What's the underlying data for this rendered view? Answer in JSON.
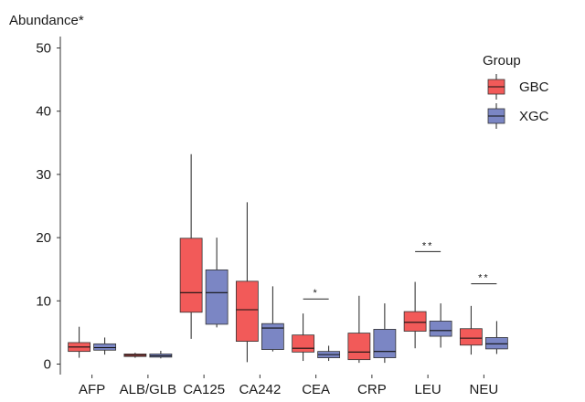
{
  "chart_data": {
    "type": "box",
    "ylabel": "Abundance*",
    "ylim": [
      0,
      52
    ],
    "yticks": [
      0,
      10,
      20,
      30,
      40,
      50
    ],
    "grid": false,
    "legend": {
      "title": "Group",
      "position": "top-right"
    },
    "categories": [
      "AFP",
      "ALB/GLB",
      "CA125",
      "CA242",
      "CEA",
      "CRP",
      "LEU",
      "NEU"
    ],
    "series": [
      {
        "name": "GBC",
        "color": "#f25a59",
        "boxes": [
          {
            "min": 1.0,
            "q1": 2.0,
            "median": 2.7,
            "q3": 3.4,
            "max": 5.9
          },
          {
            "min": 1.0,
            "q1": 1.2,
            "median": 1.4,
            "q3": 1.6,
            "max": 1.8
          },
          {
            "min": 4.0,
            "q1": 8.2,
            "median": 11.3,
            "q3": 19.9,
            "max": 33.2
          },
          {
            "min": 0.3,
            "q1": 3.6,
            "median": 8.6,
            "q3": 13.1,
            "max": 25.6
          },
          {
            "min": 0.5,
            "q1": 1.9,
            "median": 2.5,
            "q3": 4.6,
            "max": 8.0
          },
          {
            "min": 0.2,
            "q1": 0.7,
            "median": 1.9,
            "q3": 4.9,
            "max": 10.8
          },
          {
            "min": 2.5,
            "q1": 5.2,
            "median": 6.6,
            "q3": 8.3,
            "max": 13.0
          },
          {
            "min": 1.5,
            "q1": 3.0,
            "median": 4.1,
            "q3": 5.6,
            "max": 9.2
          }
        ]
      },
      {
        "name": "XGC",
        "color": "#7b86c4",
        "boxes": [
          {
            "min": 1.5,
            "q1": 2.2,
            "median": 2.6,
            "q3": 3.2,
            "max": 4.2
          },
          {
            "min": 0.9,
            "q1": 1.1,
            "median": 1.3,
            "q3": 1.6,
            "max": 2.1
          },
          {
            "min": 5.8,
            "q1": 6.3,
            "median": 11.3,
            "q3": 14.9,
            "max": 20.0
          },
          {
            "min": 2.0,
            "q1": 2.3,
            "median": 5.7,
            "q3": 6.4,
            "max": 12.3
          },
          {
            "min": 0.5,
            "q1": 1.0,
            "median": 1.5,
            "q3": 2.0,
            "max": 2.9
          },
          {
            "min": 0.2,
            "q1": 1.0,
            "median": 2.0,
            "q3": 5.5,
            "max": 9.6
          },
          {
            "min": 2.6,
            "q1": 4.4,
            "median": 5.3,
            "q3": 6.8,
            "max": 9.6
          },
          {
            "min": 1.6,
            "q1": 2.4,
            "median": 3.2,
            "q3": 4.2,
            "max": 6.8
          }
        ]
      }
    ],
    "significance": [
      {
        "category": "CEA",
        "label": "*",
        "y": 10.3
      },
      {
        "category": "LEU",
        "label": "**",
        "y": 17.8
      },
      {
        "category": "NEU",
        "label": "**",
        "y": 12.7
      }
    ]
  }
}
